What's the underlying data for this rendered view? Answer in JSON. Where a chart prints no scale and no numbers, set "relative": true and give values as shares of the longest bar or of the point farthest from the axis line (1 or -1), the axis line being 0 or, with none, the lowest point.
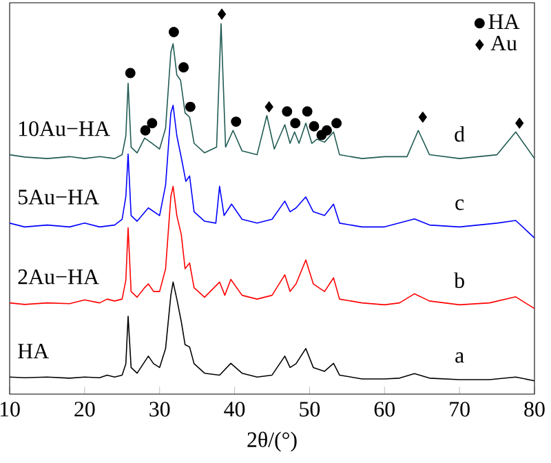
{
  "chart_data": {
    "type": "line",
    "relative": true,
    "xlabel": "2θ/(°)",
    "xlim": [
      10,
      80
    ],
    "xticks": [
      10,
      20,
      30,
      40,
      50,
      60,
      70,
      80
    ],
    "grid": false,
    "legend": "top right",
    "line_style": "solid",
    "marker": "none",
    "series": [
      {
        "name": "HA",
        "color": "#000000",
        "x": [
          10,
          12,
          15,
          18,
          20,
          22,
          23,
          24,
          25,
          25.5,
          25.8,
          26.2,
          27,
          28,
          28.5,
          29.2,
          30,
          30.8,
          31.5,
          31.8,
          32.3,
          32.9,
          33.4,
          34,
          34.6,
          36,
          38,
          39.5,
          41,
          43,
          45,
          46.7,
          47.4,
          48.2,
          49.5,
          50.5,
          52,
          53.2,
          54,
          57,
          60,
          62,
          64,
          66,
          70,
          74,
          77.5,
          80
        ],
        "values": [
          0.045,
          0.043,
          0.045,
          0.042,
          0.045,
          0.043,
          0.05,
          0.045,
          0.05,
          0.08,
          0.205,
          0.07,
          0.055,
          0.085,
          0.1,
          0.08,
          0.07,
          0.12,
          0.26,
          0.295,
          0.25,
          0.19,
          0.13,
          0.124,
          0.08,
          0.055,
          0.05,
          0.081,
          0.055,
          0.045,
          0.05,
          0.1,
          0.07,
          0.08,
          0.12,
          0.07,
          0.06,
          0.081,
          0.05,
          0.04,
          0.04,
          0.042,
          0.054,
          0.042,
          0.038,
          0.038,
          0.045,
          0.035
        ]
      },
      {
        "name": "2Au−HA",
        "color": "#ff0000",
        "x": [
          10,
          12,
          15,
          18,
          20,
          22,
          23,
          24,
          25,
          25.5,
          25.8,
          26.2,
          27,
          28,
          28.5,
          29.2,
          30,
          30.8,
          31.5,
          31.8,
          32.3,
          32.9,
          33.4,
          34,
          34.6,
          36,
          38,
          38.7,
          39.5,
          41,
          43,
          45,
          46.7,
          47.4,
          48.2,
          49.5,
          50.5,
          52,
          53.2,
          54,
          57,
          60,
          62,
          64,
          66,
          70,
          74,
          77.5,
          80
        ],
        "values": [
          0.24,
          0.236,
          0.24,
          0.238,
          0.248,
          0.24,
          0.25,
          0.245,
          0.25,
          0.3,
          0.438,
          0.27,
          0.255,
          0.28,
          0.29,
          0.27,
          0.27,
          0.33,
          0.52,
          0.547,
          0.47,
          0.419,
          0.33,
          0.345,
          0.28,
          0.255,
          0.295,
          0.26,
          0.302,
          0.26,
          0.25,
          0.26,
          0.314,
          0.27,
          0.29,
          0.353,
          0.29,
          0.27,
          0.306,
          0.25,
          0.24,
          0.235,
          0.24,
          0.264,
          0.245,
          0.235,
          0.24,
          0.256,
          0.225
        ]
      },
      {
        "name": "5Au−HA",
        "color": "#0000ff",
        "x": [
          10,
          12,
          15,
          18,
          20,
          22,
          24,
          25,
          25.5,
          25.8,
          26.2,
          27,
          28.5,
          30,
          30.8,
          31.5,
          31.8,
          32.3,
          33,
          33.5,
          34,
          34.6,
          36,
          37.5,
          38,
          38.6,
          39.6,
          41,
          43,
          45,
          46.7,
          47.4,
          48.2,
          49.5,
          50.5,
          52,
          53.2,
          54,
          57,
          60,
          64,
          66,
          70,
          75,
          77.5,
          80
        ],
        "values": [
          0.45,
          0.44,
          0.445,
          0.44,
          0.45,
          0.44,
          0.445,
          0.46,
          0.52,
          0.632,
          0.47,
          0.455,
          0.49,
          0.47,
          0.55,
          0.74,
          0.76,
          0.68,
          0.612,
          0.56,
          0.574,
          0.48,
          0.455,
          0.45,
          0.547,
          0.47,
          0.5,
          0.46,
          0.45,
          0.46,
          0.508,
          0.48,
          0.49,
          0.519,
          0.48,
          0.47,
          0.5,
          0.45,
          0.44,
          0.44,
          0.461,
          0.445,
          0.44,
          0.45,
          0.457,
          0.411
        ]
      },
      {
        "name": "10Au−HA",
        "color": "#1f5a52",
        "x": [
          10,
          12,
          15,
          18,
          20,
          22,
          24,
          25,
          25.5,
          25.8,
          26.2,
          27,
          28,
          29,
          30,
          30.8,
          31.5,
          31.8,
          32.3,
          32.8,
          33.4,
          34,
          34.6,
          36,
          37.6,
          38.2,
          38.8,
          39.8,
          41,
          43,
          44.3,
          45.3,
          46.7,
          47.4,
          48,
          48.6,
          49.5,
          50.3,
          51,
          52,
          53.2,
          54,
          57,
          60,
          63,
          64.5,
          66,
          70,
          75,
          77.5,
          80
        ],
        "values": [
          0.63,
          0.624,
          0.62,
          0.625,
          0.62,
          0.625,
          0.62,
          0.63,
          0.68,
          0.818,
          0.65,
          0.635,
          0.674,
          0.66,
          0.645,
          0.7,
          0.9,
          0.922,
          0.84,
          0.826,
          0.74,
          0.729,
          0.66,
          0.635,
          0.65,
          0.975,
          0.65,
          0.694,
          0.64,
          0.63,
          0.733,
          0.645,
          0.709,
          0.66,
          0.69,
          0.66,
          0.713,
          0.66,
          0.671,
          0.663,
          0.69,
          0.63,
          0.62,
          0.625,
          0.625,
          0.694,
          0.63,
          0.62,
          0.63,
          0.69,
          0.62
        ]
      },
      {
        "type": "scatter",
        "name": "HA",
        "marker": "circle",
        "color": "#000000",
        "x": [
          26.1,
          28.1,
          29.0,
          31.9,
          33.2,
          34.1,
          40.2,
          47.0,
          48.1,
          49.7,
          50.6,
          51.6,
          52.3,
          53.6
        ],
        "values": [
          0.845,
          0.694,
          0.713,
          0.953,
          0.86,
          0.756,
          0.717,
          0.744,
          0.713,
          0.744,
          0.705,
          0.682,
          0.694,
          0.713
        ]
      },
      {
        "type": "scatter",
        "name": "Au",
        "marker": "diamond",
        "color": "#000000",
        "x": [
          38.3,
          44.6,
          65.1,
          78.0
        ],
        "values": [
          1.0,
          0.756,
          0.729,
          0.713
        ]
      }
    ],
    "annotations": [
      "a",
      "b",
      "c",
      "d"
    ]
  }
}
